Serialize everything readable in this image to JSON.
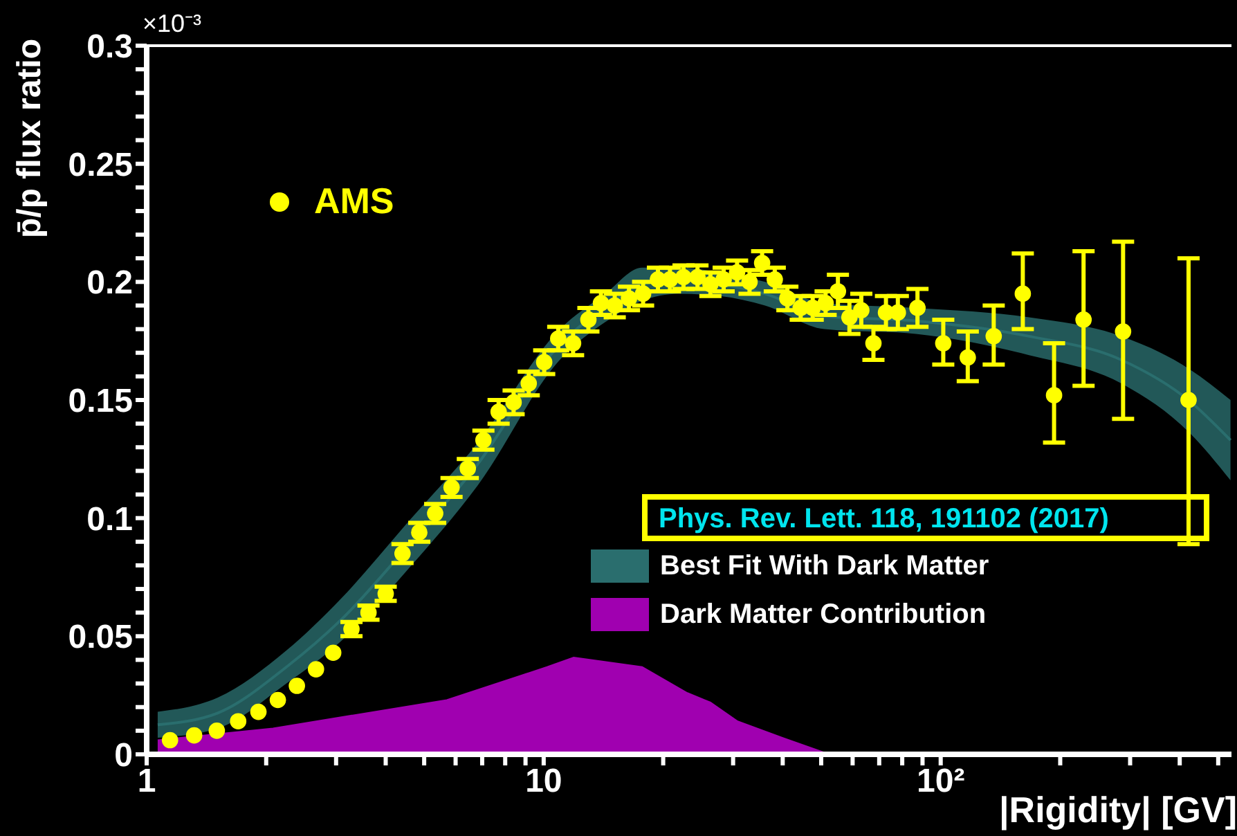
{
  "chart_data": {
    "type": "scatter",
    "ylabel": "p̄/p flux ratio",
    "xlabel": "|Rigidity| [GV]",
    "log": "x",
    "xlim": [
      1,
      540
    ],
    "ylim": [
      0,
      0.3
    ],
    "xticks": [
      1,
      {
        "value": 2,
        "label": null
      },
      {
        "value": 3,
        "label": null
      },
      {
        "value": 4,
        "label": null
      },
      {
        "value": 5,
        "label": null
      },
      {
        "value": 6,
        "label": null
      },
      {
        "value": 7,
        "label": null
      },
      {
        "value": 8,
        "label": null
      },
      {
        "value": 9,
        "label": null
      },
      10,
      {
        "value": 20,
        "label": null
      },
      {
        "value": 30,
        "label": null
      },
      {
        "value": 40,
        "label": null
      },
      {
        "value": 50,
        "label": null
      },
      {
        "value": 60,
        "label": null
      },
      {
        "value": 70,
        "label": null
      },
      {
        "value": 80,
        "label": null
      },
      {
        "value": 90,
        "label": null
      },
      {
        "value": 100,
        "label": "10²"
      },
      {
        "value": 200,
        "label": null
      },
      {
        "value": 300,
        "label": null
      },
      {
        "value": 400,
        "label": null
      },
      {
        "value": 500,
        "label": null
      }
    ],
    "yticks": [
      0,
      {
        "value": 0.01,
        "label": null
      },
      {
        "value": 0.02,
        "label": null
      },
      {
        "value": 0.03,
        "label": null
      },
      {
        "value": 0.04,
        "label": null
      },
      0.05,
      {
        "value": 0.06,
        "label": null
      },
      {
        "value": 0.07,
        "label": null
      },
      {
        "value": 0.08,
        "label": null
      },
      {
        "value": 0.09,
        "label": null
      },
      0.1,
      {
        "value": 0.11,
        "label": null
      },
      {
        "value": 0.12,
        "label": null
      },
      {
        "value": 0.13,
        "label": null
      },
      {
        "value": 0.14,
        "label": null
      },
      0.15,
      {
        "value": 0.16,
        "label": null
      },
      {
        "value": 0.17,
        "label": null
      },
      {
        "value": 0.18,
        "label": null
      },
      {
        "value": 0.19,
        "label": null
      },
      0.2,
      {
        "value": 0.21,
        "label": null
      },
      {
        "value": 0.22,
        "label": null
      },
      {
        "value": 0.23,
        "label": null
      },
      {
        "value": 0.24,
        "label": null
      },
      0.25,
      {
        "value": 0.26,
        "label": null
      },
      {
        "value": 0.27,
        "label": null
      },
      {
        "value": 0.28,
        "label": null
      },
      {
        "value": 0.29,
        "label": null
      },
      0.3
    ],
    "grid": false,
    "legend": "left",
    "annotations": [
      "×10⁻³",
      "Phys. Rev. Lett. 118, 191102 (2017)"
    ],
    "series": [
      {
        "name": "Best Fit With Dark Matter",
        "type": "line",
        "color": "#2a6e6e",
        "x": [
          1.066,
          1.51,
          2.25,
          3.09,
          4.59,
          6.83,
          10.98,
          14.3,
          17.7,
          21.9,
          27.8,
          36.1,
          50.9,
          86.6,
          167,
          285,
          424,
          537
        ],
        "values": [
          0.0125,
          0.0175,
          0.037,
          0.057,
          0.089,
          0.123,
          0.1735,
          0.189,
          0.199,
          0.2005,
          0.199,
          0.195,
          0.1855,
          0.1835,
          0.177,
          0.167,
          0.1495,
          0.133
        ],
        "lower": [
          0.007,
          0.011,
          0.03,
          0.048,
          0.079,
          0.114,
          0.167,
          0.183,
          0.192,
          0.195,
          0.194,
          0.19,
          0.18,
          0.178,
          0.169,
          0.157,
          0.136,
          0.116
        ],
        "upper": [
          0.018,
          0.024,
          0.044,
          0.066,
          0.099,
          0.132,
          0.18,
          0.195,
          0.206,
          0.206,
          0.204,
          0.2,
          0.191,
          0.189,
          0.185,
          0.177,
          0.163,
          0.15
        ]
      },
      {
        "name": "Dark Matter Contribution",
        "type": "area",
        "color": "#a000b0",
        "x": [
          1.066,
          2.08,
          5.7,
          10.2,
          11.9,
          17.7,
          23.0,
          26.3,
          30.8,
          40.0,
          52.4
        ],
        "values": [
          0.006,
          0.011,
          0.023,
          0.037,
          0.041,
          0.037,
          0.026,
          0.022,
          0.014,
          0.007,
          0
        ]
      },
      {
        "name": "AMS",
        "color": "#ffff00",
        "marker": "circle",
        "x": [
          1.145,
          1.317,
          1.502,
          1.7,
          1.912,
          2.14,
          2.39,
          2.67,
          2.95,
          3.28,
          3.62,
          4.0,
          4.41,
          4.86,
          5.33,
          5.86,
          6.44,
          7.05,
          7.7,
          8.4,
          9.17,
          10.03,
          10.88,
          11.86,
          12.96,
          13.94,
          15.1,
          16.4,
          17.8,
          19.4,
          20.8,
          22.5,
          24.4,
          26.3,
          28.4,
          30.7,
          33.0,
          35.5,
          38.2,
          41.1,
          44.4,
          47.6,
          51.3,
          55.1,
          58.9,
          63.1,
          67.7,
          72.8,
          78.0,
          87.4,
          101.5,
          117,
          136,
          161,
          193,
          229,
          288,
          421
        ],
        "values": [
          0.006,
          0.008,
          0.01,
          0.014,
          0.018,
          0.023,
          0.029,
          0.036,
          0.043,
          0.053,
          0.06,
          0.068,
          0.085,
          0.094,
          0.102,
          0.113,
          0.121,
          0.133,
          0.145,
          0.149,
          0.157,
          0.166,
          0.176,
          0.174,
          0.184,
          0.191,
          0.19,
          0.193,
          0.195,
          0.201,
          0.201,
          0.202,
          0.202,
          0.199,
          0.201,
          0.204,
          0.2,
          0.208,
          0.201,
          0.193,
          0.189,
          0.189,
          0.191,
          0.196,
          0.185,
          0.188,
          0.174,
          0.187,
          0.187,
          0.189,
          0.174,
          0.168,
          0.177,
          0.195,
          0.152,
          0.184,
          0.179,
          0.15
        ],
        "errors": [
          null,
          null,
          null,
          null,
          null,
          null,
          null,
          null,
          null,
          0.003,
          0.003,
          0.003,
          0.004,
          0.004,
          0.004,
          0.004,
          0.004,
          0.004,
          0.005,
          0.005,
          0.005,
          0.005,
          0.005,
          0.005,
          0.005,
          0.005,
          0.005,
          0.005,
          0.005,
          0.005,
          0.005,
          0.005,
          0.005,
          0.005,
          0.005,
          0.005,
          0.005,
          0.005,
          0.005,
          0.005,
          0.005,
          0.005,
          0.005,
          0.007,
          0.007,
          0.007,
          0.007,
          0.007,
          0.007,
          0.008,
          [
            0.165,
            0.184
          ],
          [
            0.158,
            0.179
          ],
          [
            0.165,
            0.19
          ],
          [
            0.18,
            0.212
          ],
          [
            0.132,
            0.174
          ],
          [
            0.156,
            0.213
          ],
          [
            0.142,
            0.217
          ],
          [
            0.089,
            0.21
          ]
        ]
      }
    ]
  }
}
